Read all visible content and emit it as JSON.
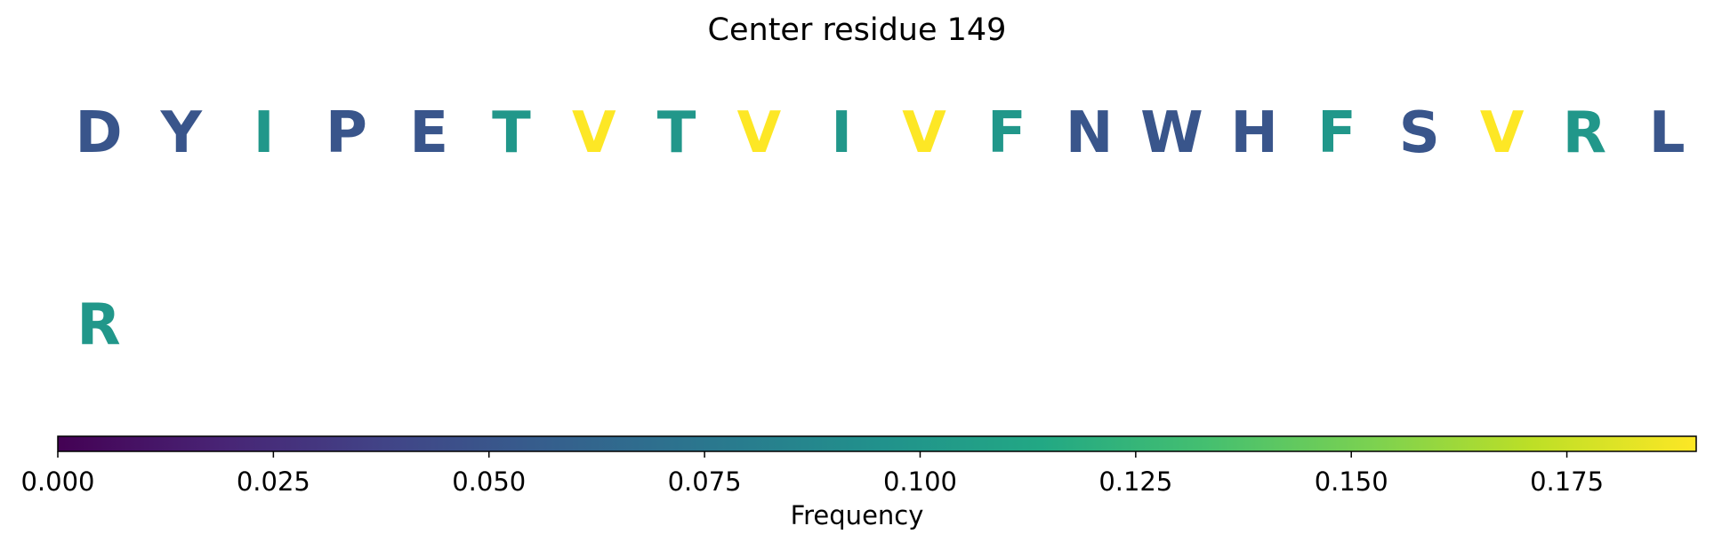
{
  "chart_data": {
    "type": "heatmap",
    "title": "Center residue 149",
    "rows": [
      {
        "residues": [
          {
            "letter": "D",
            "frequency": 0.05
          },
          {
            "letter": "Y",
            "frequency": 0.05
          },
          {
            "letter": "I",
            "frequency": 0.1
          },
          {
            "letter": "P",
            "frequency": 0.05
          },
          {
            "letter": "E",
            "frequency": 0.05
          },
          {
            "letter": "T",
            "frequency": 0.1
          },
          {
            "letter": "V",
            "frequency": 0.19
          },
          {
            "letter": "T",
            "frequency": 0.1
          },
          {
            "letter": "V",
            "frequency": 0.19
          },
          {
            "letter": "I",
            "frequency": 0.1
          },
          {
            "letter": "V",
            "frequency": 0.19
          },
          {
            "letter": "F",
            "frequency": 0.1
          },
          {
            "letter": "N",
            "frequency": 0.05
          },
          {
            "letter": "W",
            "frequency": 0.05
          },
          {
            "letter": "H",
            "frequency": 0.05
          },
          {
            "letter": "F",
            "frequency": 0.1
          },
          {
            "letter": "S",
            "frequency": 0.05
          },
          {
            "letter": "V",
            "frequency": 0.19
          },
          {
            "letter": "R",
            "frequency": 0.1
          },
          {
            "letter": "L",
            "frequency": 0.05
          }
        ]
      },
      {
        "residues": [
          {
            "letter": "R",
            "frequency": 0.1
          }
        ]
      }
    ],
    "colorbar": {
      "label": "Frequency",
      "colormap": "viridis",
      "range": [
        0,
        0.19
      ],
      "ticks": [
        {
          "value": 0.0,
          "label": "0.000"
        },
        {
          "value": 0.025,
          "label": "0.025"
        },
        {
          "value": 0.05,
          "label": "0.050"
        },
        {
          "value": 0.075,
          "label": "0.075"
        },
        {
          "value": 0.1,
          "label": "0.100"
        },
        {
          "value": 0.125,
          "label": "0.125"
        },
        {
          "value": 0.15,
          "label": "0.150"
        },
        {
          "value": 0.175,
          "label": "0.175"
        }
      ]
    }
  }
}
